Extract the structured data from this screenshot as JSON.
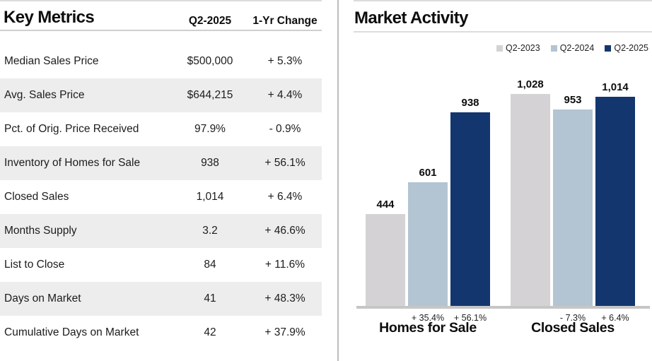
{
  "key_metrics": {
    "title": "Key Metrics",
    "columns": [
      "Q2-2025",
      "1-Yr Change"
    ],
    "rows": [
      {
        "label": "Median Sales Price",
        "value": "$500,000",
        "change": "+ 5.3%"
      },
      {
        "label": "Avg. Sales Price",
        "value": "$644,215",
        "change": "+ 4.4%"
      },
      {
        "label": "Pct. of Orig. Price Received",
        "value": "97.9%",
        "change": "- 0.9%"
      },
      {
        "label": "Inventory of Homes for Sale",
        "value": "938",
        "change": "+ 56.1%"
      },
      {
        "label": "Closed Sales",
        "value": "1,014",
        "change": "+ 6.4%"
      },
      {
        "label": "Months Supply",
        "value": "3.2",
        "change": "+ 46.6%"
      },
      {
        "label": "List to Close",
        "value": "84",
        "change": "+ 11.6%"
      },
      {
        "label": "Days on Market",
        "value": "41",
        "change": "+ 48.3%"
      },
      {
        "label": "Cumulative Days on Market",
        "value": "42",
        "change": "+ 37.9%"
      }
    ]
  },
  "market_activity": {
    "title": "Market Activity"
  },
  "chart_data": {
    "type": "bar",
    "title": "Market Activity",
    "categories": [
      "Homes for Sale",
      "Closed Sales"
    ],
    "series": [
      {
        "name": "Q2-2023",
        "values": [
          444,
          1028
        ],
        "color": "#d5d2d6"
      },
      {
        "name": "Q2-2024",
        "values": [
          601,
          953
        ],
        "color": "#b3c4d2"
      },
      {
        "name": "Q2-2025",
        "values": [
          938,
          1014
        ],
        "color": "#14366e"
      }
    ],
    "value_labels": [
      [
        "444",
        "1,028"
      ],
      [
        "601",
        "953"
      ],
      [
        "938",
        "1,014"
      ]
    ],
    "change_labels": [
      [
        "+ 35.4%",
        "+ 56.1%"
      ],
      [
        "- 7.3%",
        "+ 6.4%"
      ]
    ],
    "xlabel": "",
    "ylabel": "",
    "ylim": [
      0,
      1150
    ],
    "grid": false,
    "legend_position": "top-right",
    "axis_color": "#c6c6c6"
  }
}
